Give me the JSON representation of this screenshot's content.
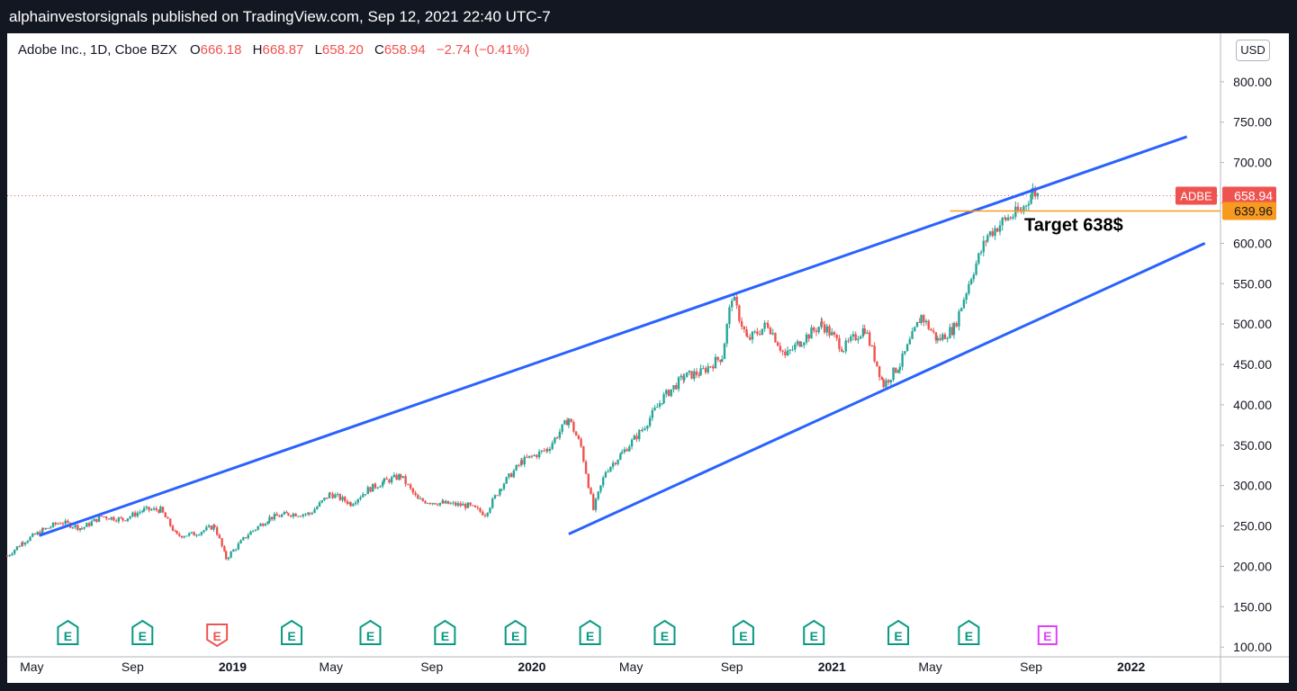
{
  "header": {
    "text": "alphainvestorsignals published on TradingView.com, Sep 12, 2021 22:40 UTC-7"
  },
  "legend": {
    "title": "Adobe Inc., 1D, Cboe BZX",
    "open_label": "O",
    "open": "666.18",
    "high_label": "H",
    "high": "668.87",
    "low_label": "L",
    "low": "658.20",
    "close_label": "C",
    "close": "658.94",
    "change": "−2.74 (−0.41%)"
  },
  "currency_button": "USD",
  "colors": {
    "up": "#26a69a",
    "down": "#ef5350",
    "trendline": "#2962ff",
    "target_line": "#f89a1d",
    "earnings": "#089981",
    "earnings_upcoming": "#e040fb",
    "earnings_miss": "#ef5350",
    "last_price": "#ef5350"
  },
  "chart_data": {
    "type": "line",
    "title": "Adobe Inc., 1D, Cboe BZX",
    "symbol": "ADBE",
    "last_price": 658.94,
    "last_price_label": "658.94",
    "target_price": 639.96,
    "target_price_label": "639.96",
    "annotation": "Target 638$",
    "ylim": [
      88,
      860
    ],
    "y_ticks": [
      "100.00",
      "150.00",
      "200.00",
      "250.00",
      "300.00",
      "350.00",
      "400.00",
      "450.00",
      "500.00",
      "550.00",
      "600.00",
      "650.00",
      "700.00",
      "750.00",
      "800.00"
    ],
    "x_ticks": [
      "May",
      "Sep",
      "2019",
      "May",
      "Sep",
      "2020",
      "May",
      "Sep",
      "2021",
      "May",
      "Sep",
      "2022"
    ],
    "x_ticks_bold": [
      "2019",
      "2020",
      "2021",
      "2022"
    ],
    "x_tick_dates": [
      "2018-05-01",
      "2018-09-01",
      "2019-01-01",
      "2019-05-01",
      "2019-09-01",
      "2020-01-01",
      "2020-05-01",
      "2020-09-01",
      "2021-01-01",
      "2021-05-01",
      "2021-09-01",
      "2022-01-01"
    ],
    "xlim": [
      "2018-04-01",
      "2022-04-20"
    ],
    "series": [
      {
        "values": [
          [
            "2018-04-01",
            213
          ],
          [
            "2018-04-20",
            230
          ],
          [
            "2018-05-15",
            245
          ],
          [
            "2018-06-05",
            255
          ],
          [
            "2018-07-01",
            247
          ],
          [
            "2018-07-25",
            262
          ],
          [
            "2018-08-20",
            258
          ],
          [
            "2018-09-15",
            270
          ],
          [
            "2018-10-05",
            270
          ],
          [
            "2018-10-25",
            238
          ],
          [
            "2018-11-15",
            240
          ],
          [
            "2018-12-10",
            250
          ],
          [
            "2018-12-24",
            210
          ],
          [
            "2019-01-20",
            240
          ],
          [
            "2019-02-15",
            260
          ],
          [
            "2019-03-10",
            265
          ],
          [
            "2019-04-05",
            265
          ],
          [
            "2019-04-30",
            290
          ],
          [
            "2019-05-25",
            278
          ],
          [
            "2019-06-15",
            295
          ],
          [
            "2019-07-05",
            305
          ],
          [
            "2019-07-25",
            312
          ],
          [
            "2019-08-15",
            282
          ],
          [
            "2019-09-15",
            278
          ],
          [
            "2019-10-15",
            275
          ],
          [
            "2019-11-05",
            265
          ],
          [
            "2019-11-25",
            300
          ],
          [
            "2019-12-20",
            330
          ],
          [
            "2020-01-20",
            345
          ],
          [
            "2020-02-15",
            383
          ],
          [
            "2020-03-01",
            348
          ],
          [
            "2020-03-16",
            270
          ],
          [
            "2020-03-31",
            318
          ],
          [
            "2020-04-20",
            340
          ],
          [
            "2020-05-15",
            370
          ],
          [
            "2020-06-10",
            410
          ],
          [
            "2020-07-05",
            435
          ],
          [
            "2020-07-25",
            440
          ],
          [
            "2020-08-20",
            460
          ],
          [
            "2020-09-01",
            535
          ],
          [
            "2020-09-20",
            480
          ],
          [
            "2020-10-15",
            500
          ],
          [
            "2020-11-05",
            460
          ],
          [
            "2020-11-25",
            480
          ],
          [
            "2020-12-20",
            500
          ],
          [
            "2021-01-15",
            470
          ],
          [
            "2021-02-10",
            495
          ],
          [
            "2021-03-05",
            425
          ],
          [
            "2021-03-25",
            450
          ],
          [
            "2021-04-20",
            510
          ],
          [
            "2021-05-10",
            480
          ],
          [
            "2021-05-30",
            495
          ],
          [
            "2021-06-20",
            560
          ],
          [
            "2021-07-10",
            610
          ],
          [
            "2021-08-01",
            630
          ],
          [
            "2021-08-20",
            640
          ],
          [
            "2021-09-03",
            665
          ],
          [
            "2021-09-10",
            659
          ]
        ]
      }
    ],
    "trendlines": [
      {
        "from": [
          "2018-05-10",
          238
        ],
        "to": [
          "2022-03-10",
          732
        ]
      },
      {
        "from": [
          "2020-02-15",
          240
        ],
        "to": [
          "2022-04-01",
          600
        ]
      }
    ],
    "target_segment": {
      "from": "2021-05-25",
      "to": "2022-04-20",
      "value": 639.96
    },
    "earnings_markers": [
      {
        "date": "2018-06-14",
        "label": "E",
        "kind": "normal"
      },
      {
        "date": "2018-09-13",
        "label": "E",
        "kind": "normal"
      },
      {
        "date": "2018-12-13",
        "label": "E",
        "kind": "miss"
      },
      {
        "date": "2019-03-14",
        "label": "E",
        "kind": "normal"
      },
      {
        "date": "2019-06-18",
        "label": "E",
        "kind": "normal"
      },
      {
        "date": "2019-09-17",
        "label": "E",
        "kind": "normal"
      },
      {
        "date": "2019-12-12",
        "label": "E",
        "kind": "normal"
      },
      {
        "date": "2020-03-12",
        "label": "E",
        "kind": "normal"
      },
      {
        "date": "2020-06-11",
        "label": "E",
        "kind": "normal"
      },
      {
        "date": "2020-09-15",
        "label": "E",
        "kind": "normal"
      },
      {
        "date": "2020-12-10",
        "label": "E",
        "kind": "normal"
      },
      {
        "date": "2021-03-23",
        "label": "E",
        "kind": "normal"
      },
      {
        "date": "2021-06-17",
        "label": "E",
        "kind": "normal"
      },
      {
        "date": "2021-09-21",
        "label": "E",
        "kind": "upcoming"
      }
    ]
  }
}
